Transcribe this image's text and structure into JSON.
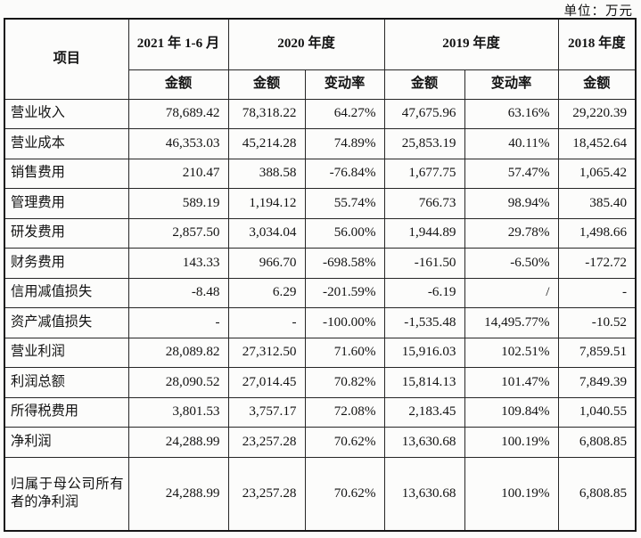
{
  "unit_label": "单位：万元",
  "colors": {
    "background": "#fbfbfa",
    "border": "#262626",
    "text": "#121212"
  },
  "table": {
    "header": {
      "item": "项目",
      "period_2021": "2021 年 1-6 月",
      "period_2020": "2020 年度",
      "period_2019": "2019 年度",
      "period_2018": "2018 年度",
      "amount": "金额",
      "change_rate": "变动率"
    },
    "rows": [
      {
        "label": "营业收入",
        "cells": [
          "78,689.42",
          "78,318.22",
          "64.27%",
          "47,675.96",
          "63.16%",
          "29,220.39"
        ]
      },
      {
        "label": "营业成本",
        "cells": [
          "46,353.03",
          "45,214.28",
          "74.89%",
          "25,853.19",
          "40.11%",
          "18,452.64"
        ]
      },
      {
        "label": "销售费用",
        "cells": [
          "210.47",
          "388.58",
          "-76.84%",
          "1,677.75",
          "57.47%",
          "1,065.42"
        ]
      },
      {
        "label": "管理费用",
        "cells": [
          "589.19",
          "1,194.12",
          "55.74%",
          "766.73",
          "98.94%",
          "385.40"
        ]
      },
      {
        "label": "研发费用",
        "cells": [
          "2,857.50",
          "3,034.04",
          "56.00%",
          "1,944.89",
          "29.78%",
          "1,498.66"
        ]
      },
      {
        "label": "财务费用",
        "cells": [
          "143.33",
          "966.70",
          "-698.58%",
          "-161.50",
          "-6.50%",
          "-172.72"
        ]
      },
      {
        "label": "信用减值损失",
        "cells": [
          "-8.48",
          "6.29",
          "-201.59%",
          "-6.19",
          "/",
          "-"
        ]
      },
      {
        "label": "资产减值损失",
        "cells": [
          "-",
          "-",
          "-100.00%",
          "-1,535.48",
          "14,495.77%",
          "-10.52"
        ]
      },
      {
        "label": "营业利润",
        "cells": [
          "28,089.82",
          "27,312.50",
          "71.60%",
          "15,916.03",
          "102.51%",
          "7,859.51"
        ]
      },
      {
        "label": "利润总额",
        "cells": [
          "28,090.52",
          "27,014.45",
          "70.82%",
          "15,814.13",
          "101.47%",
          "7,849.39"
        ]
      },
      {
        "label": "所得税费用",
        "cells": [
          "3,801.53",
          "3,757.17",
          "72.08%",
          "2,183.45",
          "109.84%",
          "1,040.55"
        ]
      },
      {
        "label": "净利润",
        "cells": [
          "24,288.99",
          "23,257.28",
          "70.62%",
          "13,630.68",
          "100.19%",
          "6,808.85"
        ]
      },
      {
        "label": "归属于母公司所有者的净利润",
        "cells": [
          "24,288.99",
          "23,257.28",
          "70.62%",
          "13,630.68",
          "100.19%",
          "6,808.85"
        ]
      }
    ]
  }
}
